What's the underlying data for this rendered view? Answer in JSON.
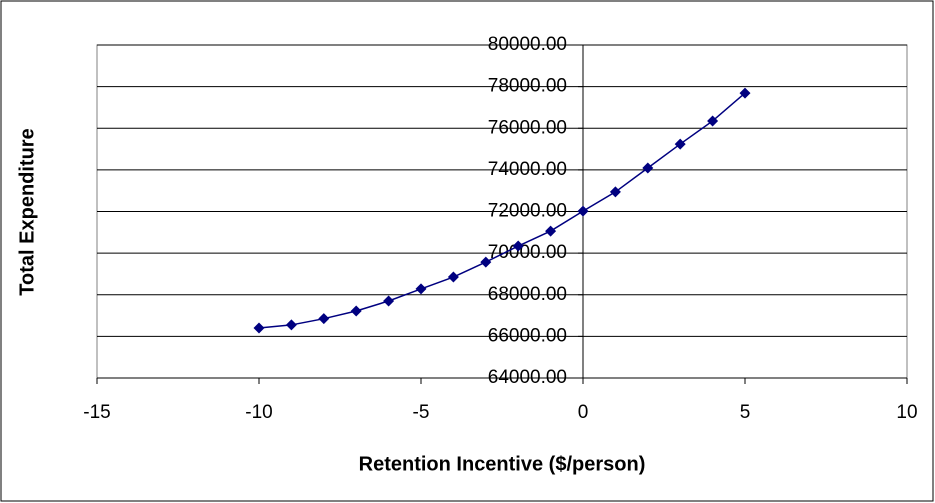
{
  "chart_data": {
    "type": "scatter",
    "xlabel": "Retention Incentive ($/person)",
    "ylabel": "Total Expenditure",
    "x": [
      -10,
      -9,
      -8,
      -7,
      -6,
      -5,
      -4,
      -3,
      -2,
      -1,
      0,
      1,
      2,
      3,
      4,
      5
    ],
    "series": [
      {
        "color": "#000080",
        "values": [
          66400,
          66550,
          66850,
          67220,
          67700,
          68280,
          68850,
          69570,
          70340,
          71060,
          72020,
          72940,
          74090,
          75240,
          76350,
          77690
        ]
      }
    ],
    "xlim": [
      -15,
      10
    ],
    "xticks": [
      -15,
      -10,
      -5,
      0,
      5,
      10
    ],
    "ylim": [
      64000,
      80000
    ],
    "yticks": [
      {
        "value": 64000,
        "label": "64000.00"
      },
      {
        "value": 66000,
        "label": "66000.00"
      },
      {
        "value": 68000,
        "label": "68000.00"
      },
      {
        "value": 70000,
        "label": "70000.00"
      },
      {
        "value": 72000,
        "label": "72000.00"
      },
      {
        "value": 74000,
        "label": "74000.00"
      },
      {
        "value": 76000,
        "label": "76000.00"
      },
      {
        "value": 78000,
        "label": "78000.00"
      },
      {
        "value": 80000,
        "label": "80000.00"
      }
    ],
    "grid": true
  }
}
